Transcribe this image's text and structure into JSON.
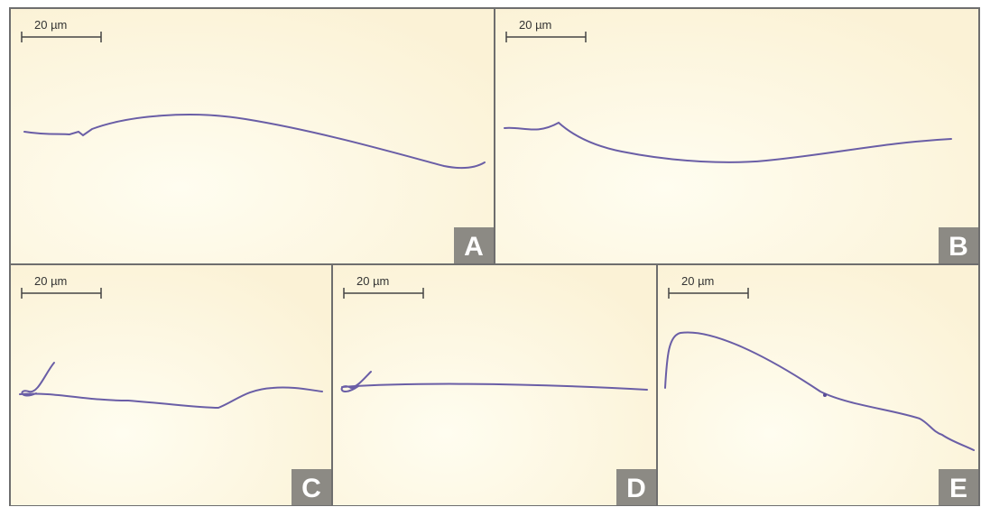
{
  "panels": [
    {
      "label": "A",
      "scale_bar": "20 µm"
    },
    {
      "label": "B",
      "scale_bar": "20 µm"
    },
    {
      "label": "C",
      "scale_bar": "20 µm"
    },
    {
      "label": "D",
      "scale_bar": "20 µm"
    },
    {
      "label": "E",
      "scale_bar": "20 µm"
    }
  ]
}
